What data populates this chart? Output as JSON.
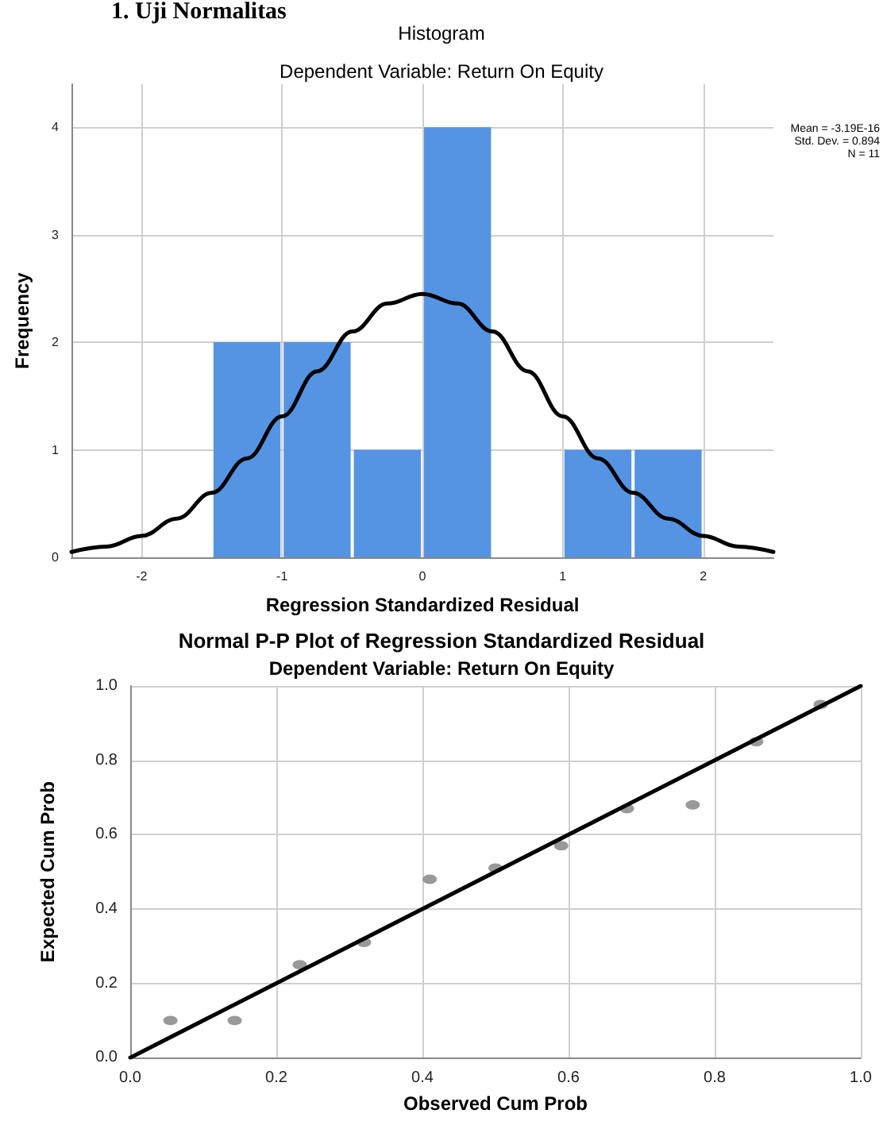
{
  "chart_data": [
    {
      "type": "histogram",
      "title": "Histogram",
      "subtitle": "Dependent Variable: Return On Equity",
      "xlabel": "Regression Standardized Residual",
      "ylabel": "Frequency",
      "annotations": [
        "1. Uji Normalitas",
        "Mean = -3.19E-16",
        "Std. Dev. = 0.894",
        "N = 11"
      ],
      "bins": [
        -1.5,
        -1,
        -0.5,
        0,
        0.5,
        1,
        1.5,
        2
      ],
      "values": [
        2,
        2,
        1,
        4,
        0,
        1,
        1
      ],
      "color": "#5594e2",
      "series": [
        {
          "type": "line",
          "color": "#000000",
          "x": [
            -2.5,
            -2.25,
            -2,
            -1.75,
            -1.5,
            -1.25,
            -1,
            -0.75,
            -0.5,
            -0.25,
            0,
            0.25,
            0.5,
            0.75,
            1,
            1.25,
            1.5,
            1.75,
            2,
            2.25,
            2.5
          ],
          "values": [
            0.05,
            0.1,
            0.2,
            0.36,
            0.6,
            0.92,
            1.31,
            1.73,
            2.1,
            2.36,
            2.45,
            2.36,
            2.1,
            1.73,
            1.31,
            0.92,
            0.6,
            0.36,
            0.2,
            0.1,
            0.05
          ]
        }
      ],
      "xlim": [
        -2.5,
        2.5
      ],
      "xticks": [
        -2,
        -1,
        0,
        1,
        2
      ],
      "ylim": [
        0,
        4.4
      ],
      "yticks": [
        0,
        1,
        2,
        3,
        4
      ],
      "grid": true
    },
    {
      "type": "scatter",
      "title": "Normal P-P Plot of Regression Standardized Residual",
      "subtitle": "Dependent Variable: Return On Equity",
      "xlabel": "Observed Cum Prob",
      "ylabel": "Expected Cum Prob",
      "series": [
        {
          "type": "scatter",
          "marker": "circle",
          "color": "#808080",
          "x": [
            0.055,
            0.143,
            0.232,
            0.32,
            0.41,
            0.5,
            0.59,
            0.68,
            0.77,
            0.857,
            0.945
          ],
          "values": [
            0.1,
            0.1,
            0.25,
            0.31,
            0.48,
            0.51,
            0.57,
            0.67,
            0.68,
            0.85,
            0.95
          ]
        },
        {
          "type": "line",
          "color": "#000000",
          "x": [
            0,
            1
          ],
          "values": [
            0,
            1
          ]
        }
      ],
      "xlim": [
        0,
        1
      ],
      "ylim": [
        0,
        1
      ],
      "xticks": [
        {
          "value": 0,
          "label": "0.0"
        },
        {
          "value": 0.2,
          "label": "0.2"
        },
        {
          "value": 0.4,
          "label": "0.4"
        },
        {
          "value": 0.6,
          "label": "0.6"
        },
        {
          "value": 0.8,
          "label": "0.8"
        },
        {
          "value": 1,
          "label": "1.0"
        }
      ],
      "yticks": [
        {
          "value": 0,
          "label": "0.0"
        },
        {
          "value": 0.2,
          "label": "0.2"
        },
        {
          "value": 0.4,
          "label": "0.4"
        },
        {
          "value": 0.6,
          "label": "0.6"
        },
        {
          "value": 0.8,
          "label": "0.8"
        },
        {
          "value": 1,
          "label": "1.0"
        }
      ],
      "grid": true
    }
  ]
}
